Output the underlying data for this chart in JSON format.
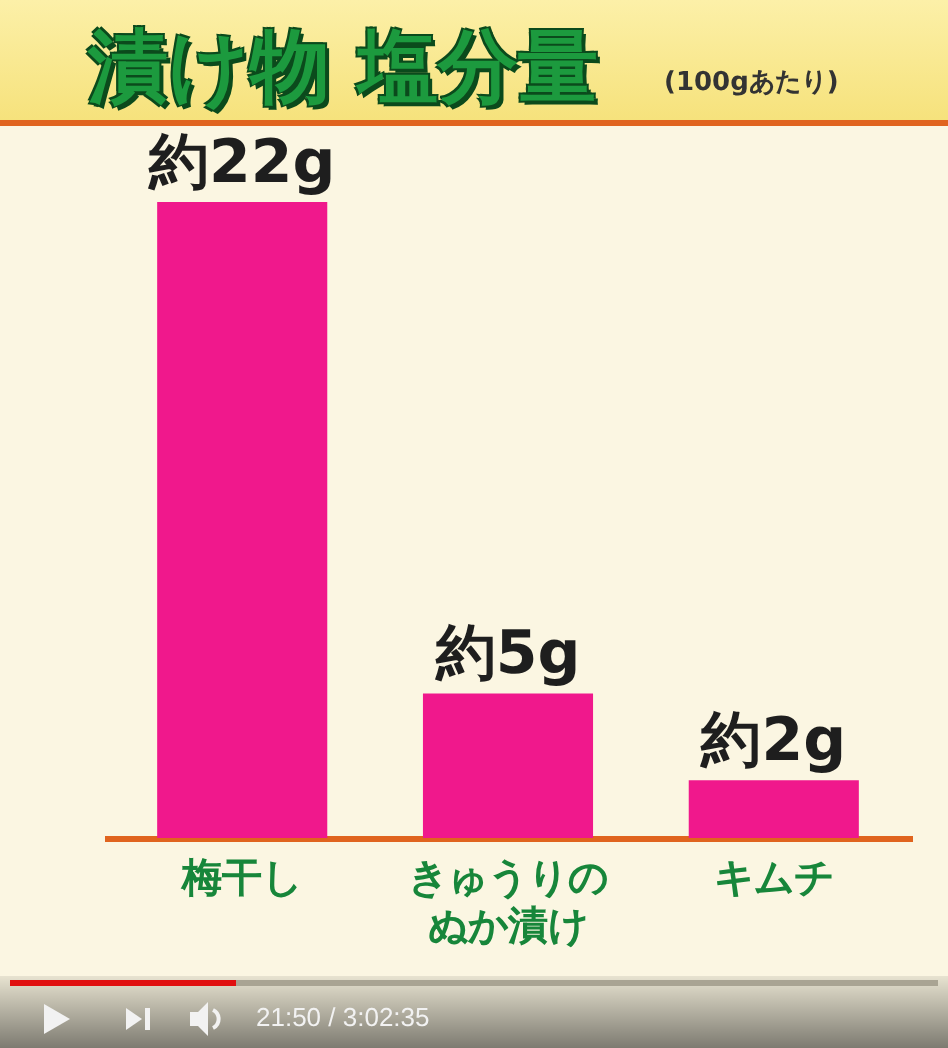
{
  "chart_data": {
    "type": "bar",
    "title": "漬け物 塩分量",
    "subtitle": "(100gあたり)",
    "categories": [
      "梅干し",
      "きゅうりのぬか漬け",
      "キムチ"
    ],
    "values": [
      22,
      5,
      2
    ],
    "value_labels": [
      "約22g",
      "約5g",
      "約2g"
    ],
    "color": "#f0188c",
    "annotations": [
      "21:50 / 3:02:35"
    ]
  }
}
